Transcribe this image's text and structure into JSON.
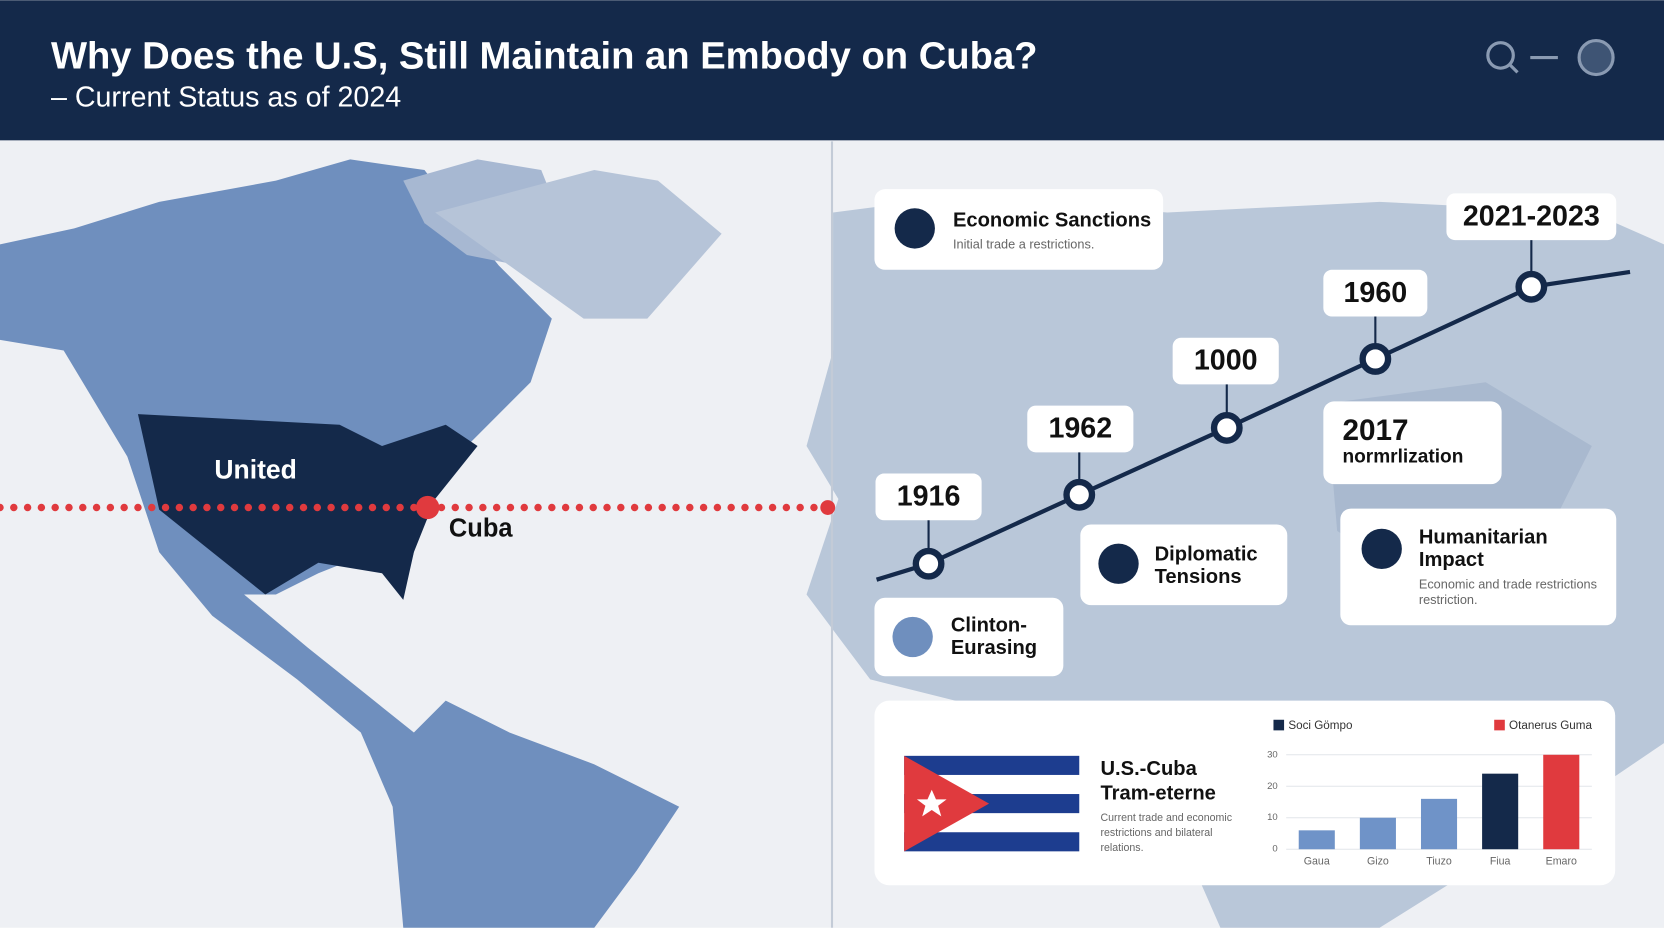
{
  "header": {
    "title": "Why Does the U.S, Still Maintain an Embody on Cuba?",
    "subtitle": "– Current Status as of 2024"
  },
  "map": {
    "labels": [
      "United",
      "Cuba"
    ]
  },
  "timeline": {
    "points": [
      "1916",
      "1962",
      "1000",
      "1960",
      "2021-2023"
    ],
    "note": {
      "year": "2017",
      "text": "normrlization"
    }
  },
  "cards": [
    {
      "title_lines": [
        "Economic Sanctions"
      ],
      "text_lines": [
        "Initial trade a restrictions."
      ]
    },
    {
      "title_lines": [
        "Diplomatic",
        "Tensions"
      ]
    },
    {
      "title_lines": [
        "Clinton-",
        "Eurasing"
      ]
    },
    {
      "title_lines": [
        "Humanitarian",
        "Impact"
      ],
      "text_lines": [
        "Economic and trade restrictions",
        "restriction."
      ]
    }
  ],
  "panel": {
    "title_lines": [
      "U.S.-Cuba",
      "Tram-eterne"
    ],
    "text_lines": [
      "Current trade and economic",
      "restrictions and bilateral",
      "relations."
    ]
  },
  "chart_data": {
    "type": "bar",
    "legend": [
      {
        "name": "Soci Gömpo",
        "color": "#14294a"
      },
      {
        "name": "Otanerus Guma",
        "color": "#e03a3e"
      }
    ],
    "categories": [
      "Gaua",
      "Gizo",
      "Tiuzo",
      "Fiua",
      "Emaro"
    ],
    "values": [
      6,
      10,
      16,
      24,
      30
    ],
    "colors": [
      "#6f93c8",
      "#6f93c8",
      "#6f93c8",
      "#14294a",
      "#e03a3e"
    ],
    "ylim": [
      0,
      30
    ],
    "yticks": [
      0,
      10,
      20,
      30
    ],
    "grid": true
  }
}
